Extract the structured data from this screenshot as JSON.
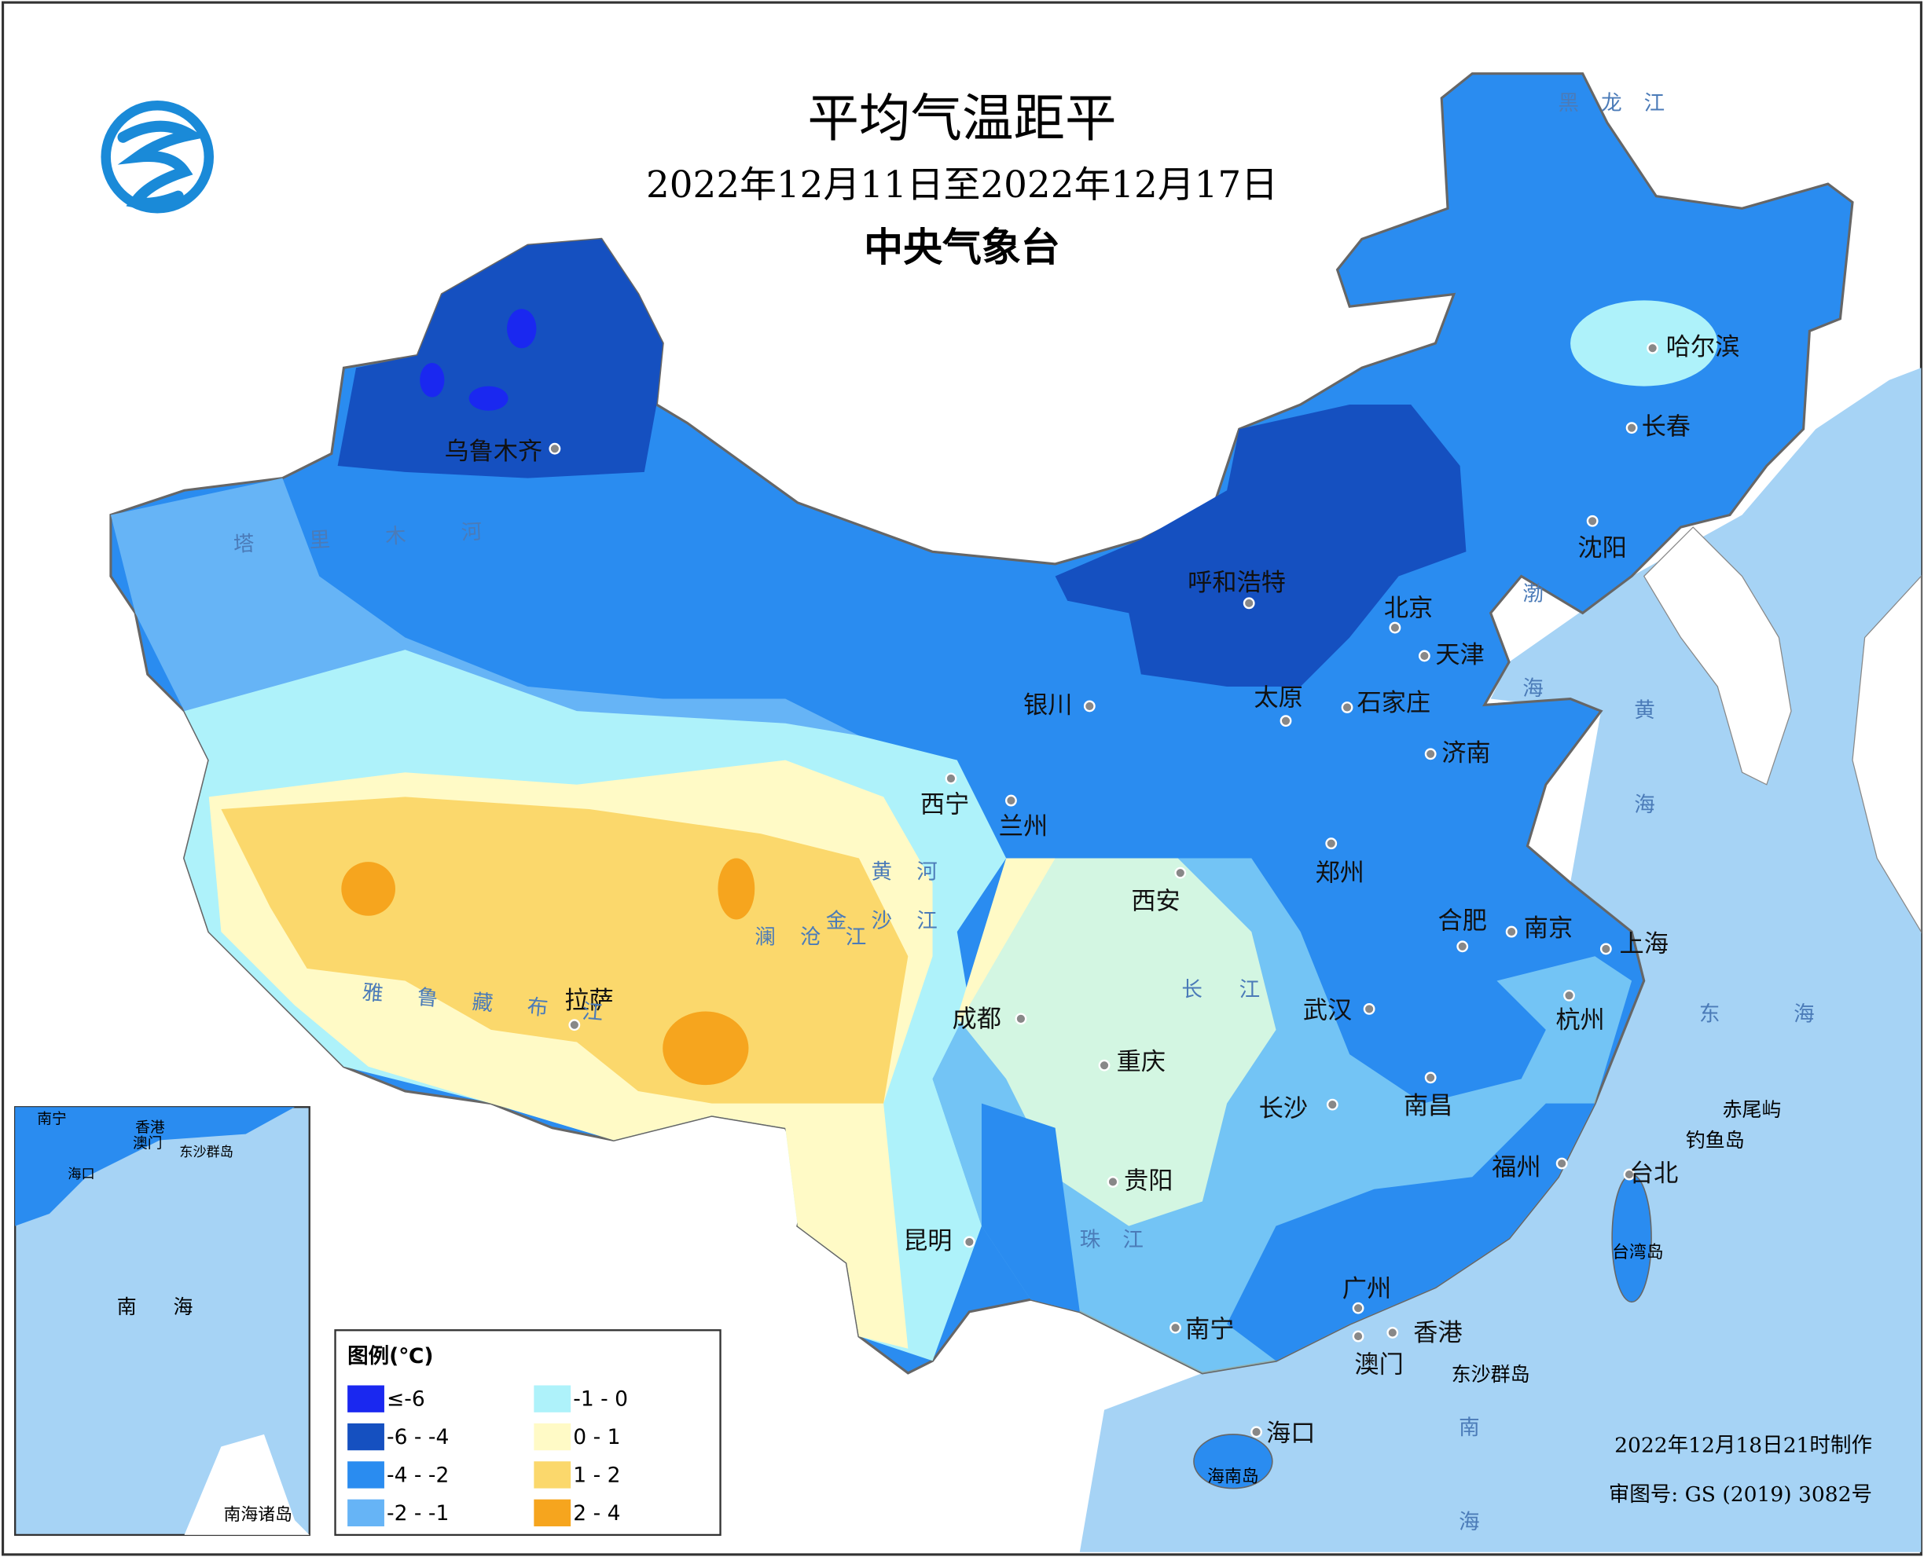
{
  "header": {
    "title": "平均气温距平",
    "subtitle": "2022年12月11日至2022年12月17日",
    "agency": "中央气象台"
  },
  "legend": {
    "title": "图例(℃)",
    "items": [
      {
        "label": "≤-6",
        "color": "#1a28f0"
      },
      {
        "label": "-6 - -4",
        "color": "#1550c0"
      },
      {
        "label": "-4 - -2",
        "color": "#2a8cf0"
      },
      {
        "label": "-2 - -1",
        "color": "#66b4f6"
      },
      {
        "label": "-1 - 0",
        "color": "#aef2fa"
      },
      {
        "label": "0 - 1",
        "color": "#fffac6"
      },
      {
        "label": "1 - 2",
        "color": "#fbd86c"
      },
      {
        "label": "2 - 4",
        "color": "#f6a51e"
      }
    ]
  },
  "cities": [
    "乌鲁木齐",
    "哈尔滨",
    "长春",
    "沈阳",
    "呼和浩特",
    "北京",
    "天津",
    "银川",
    "太原",
    "石家庄",
    "济南",
    "西宁",
    "兰州",
    "郑州",
    "西安",
    "合肥",
    "南京",
    "上海",
    "成都",
    "武汉",
    "杭州",
    "拉萨",
    "重庆",
    "长沙",
    "南昌",
    "福州",
    "台北",
    "贵阳",
    "昆明",
    "广州",
    "南宁",
    "香港",
    "澳门",
    "海口"
  ],
  "places": [
    "赤尾屿",
    "钓鱼岛",
    "台湾岛",
    "海南岛",
    "东沙群岛"
  ],
  "rivers": [
    "黑龙江",
    "塔里木河",
    "雅鲁藏布江",
    "黄河",
    "长江",
    "澜沧江",
    "金沙江",
    "珠江"
  ],
  "seas": [
    "渤海",
    "黄海",
    "东海",
    "南海"
  ],
  "inset": {
    "title": "南海诸岛",
    "labels": [
      "南宁",
      "香港",
      "澳门",
      "东沙群岛",
      "海口",
      "南海"
    ]
  },
  "footer": {
    "made": "2022年12月18日21时制作",
    "approval": "审图号: GS (2019) 3082号"
  }
}
